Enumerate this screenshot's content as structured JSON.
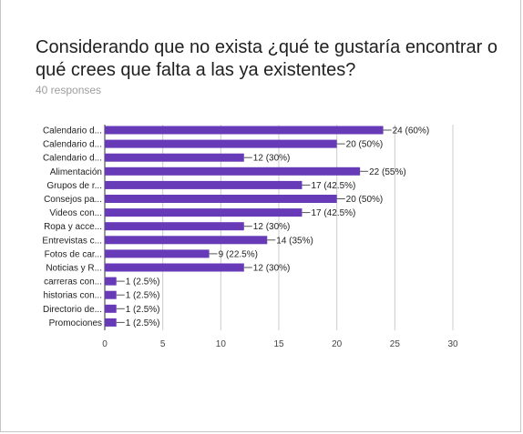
{
  "form": {
    "question": "Considerando que no exista ¿qué te gustaría encontrar o qué crees que falta a las ya existentes?",
    "responses": "40 responses"
  },
  "chart_data": {
    "type": "bar",
    "orientation": "horizontal",
    "title": "",
    "xlabel": "",
    "ylabel": "",
    "xlim": [
      0,
      30
    ],
    "xticks": [
      0,
      5,
      10,
      15,
      20,
      25,
      30
    ],
    "bar_color": "#673ab7",
    "categories": [
      "Calendario d...",
      "Calendario d...",
      "Calendario d...",
      "Alimentación",
      "Grupos de r...",
      "Consejos pa...",
      "Videos con...",
      "Ropa y acce...",
      "Entrevistas c...",
      "Fotos de car...",
      "Noticias y R...",
      "carreras con...",
      "historias con...",
      "Directorio de...",
      "Promociones"
    ],
    "values": [
      24,
      20,
      12,
      22,
      17,
      20,
      17,
      12,
      14,
      9,
      12,
      1,
      1,
      1,
      1
    ],
    "labels": [
      "24 (60%)",
      "20 (50%)",
      "12 (30%)",
      "22 (55%)",
      "17 (42.5%)",
      "20 (50%)",
      "17 (42.5%)",
      "12 (30%)",
      "14 (35%)",
      "9 (22.5%)",
      "12 (30%)",
      "1 (2.5%)",
      "1 (2.5%)",
      "1 (2.5%)",
      "1 (2.5%)"
    ]
  }
}
